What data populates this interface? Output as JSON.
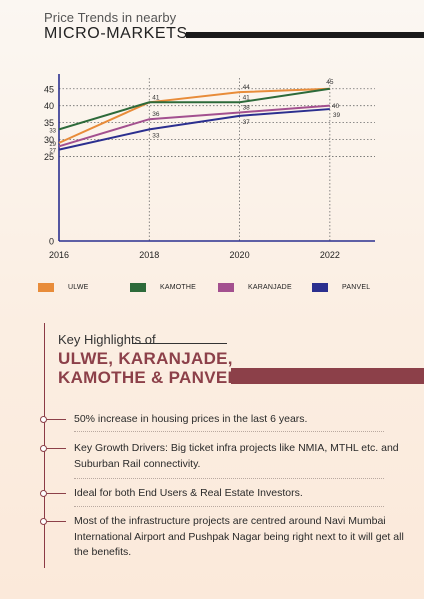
{
  "header": {
    "title_line1": "Price Trends in nearby",
    "title_line2": "MICRO-MARKETS"
  },
  "chart_data": {
    "type": "line",
    "x": [
      2016,
      2018,
      2020,
      2022
    ],
    "ylim": [
      0,
      47
    ],
    "yticks": [
      0,
      25,
      30,
      35,
      40,
      45
    ],
    "grid": true,
    "legend_position": "bottom",
    "series": [
      {
        "name": "ULWE",
        "color": "#e88c3a",
        "values": [
          29,
          41,
          44,
          45
        ]
      },
      {
        "name": "KAMOTHE",
        "color": "#2d6a3a",
        "values": [
          33,
          41,
          41,
          45
        ]
      },
      {
        "name": "KARANJADE",
        "color": "#a3508f",
        "values": [
          28,
          36,
          38,
          40
        ]
      },
      {
        "name": "PANVEL",
        "color": "#2b2f8f",
        "values": [
          27,
          33,
          37,
          39
        ]
      }
    ],
    "data_labels": [
      {
        "x": 2016,
        "y": 33,
        "text": "33",
        "side": "left"
      },
      {
        "x": 2016,
        "y": 29,
        "text": "29",
        "side": "left"
      },
      {
        "x": 2016,
        "y": 27,
        "text": "27",
        "side": "left"
      },
      {
        "x": 2018,
        "y": 41,
        "text": "41",
        "side": "right-above"
      },
      {
        "x": 2018,
        "y": 36,
        "text": "36",
        "side": "right-above"
      },
      {
        "x": 2018,
        "y": 33,
        "text": "33",
        "side": "right-below"
      },
      {
        "x": 2020,
        "y": 44,
        "text": "44",
        "side": "right-above"
      },
      {
        "x": 2020,
        "y": 41,
        "text": "41",
        "side": "right-above"
      },
      {
        "x": 2020,
        "y": 38,
        "text": "38",
        "side": "right-above"
      },
      {
        "x": 2020,
        "y": 37,
        "text": "37",
        "side": "right-below"
      },
      {
        "x": 2022,
        "y": 45,
        "text": "45",
        "side": "above"
      },
      {
        "x": 2022,
        "y": 40,
        "text": "40",
        "side": "right"
      },
      {
        "x": 2022,
        "y": 39,
        "text": "39",
        "side": "right-below"
      }
    ]
  },
  "highlights": {
    "label": "Key Highlights of",
    "title_line1": "ULWE, KARANJADE,",
    "title_line2": "KAMOTHE & PANVEL",
    "items": [
      "50% increase in housing prices in the last 6 years.",
      "Key Growth Drivers: Big ticket infra projects like NMIA, MTHL etc. and Suburban Rail connectivity.",
      "Ideal for both End Users & Real Estate Investors.",
      "Most of the infrastructure projects are centred around Navi Mumbai International Airport and Pushpak Nagar being right next to it will get all the benefits."
    ]
  },
  "colors": {
    "accent": "#8c4049",
    "axis": "#2b2f8f"
  }
}
